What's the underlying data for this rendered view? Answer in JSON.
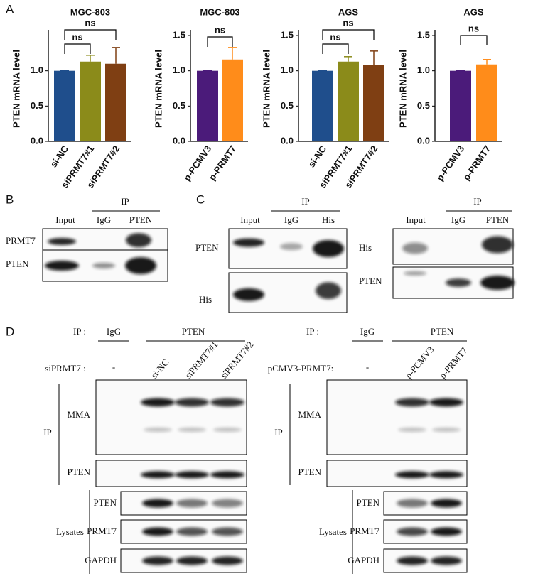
{
  "panel_labels": [
    "A",
    "B",
    "C",
    "D"
  ],
  "chart_data": [
    {
      "type": "bar",
      "title": "MGC-803",
      "y_label": "PTEN mRNA level",
      "categories": [
        "si-NC",
        "siPRMT7#1",
        "siPRMT7#2"
      ],
      "values": [
        1.0,
        1.13,
        1.1
      ],
      "errors": [
        0,
        0.09,
        0.23
      ],
      "colors": [
        "#1f4e8c",
        "#8b8b1a",
        "#7f3f13"
      ],
      "ylim": [
        0,
        1.5
      ],
      "yticks": [
        {
          "value": 0,
          "label": "0.0"
        },
        0.5,
        {
          "value": 1,
          "label": "1.0"
        }
      ],
      "annotations": [
        "ns",
        "ns"
      ]
    },
    {
      "type": "bar",
      "title": "MGC-803",
      "y_label": "PTEN mRNA level",
      "categories": [
        "p-PCMV3",
        "p-PRMT7"
      ],
      "values": [
        1.0,
        1.16
      ],
      "errors": [
        0,
        0.17
      ],
      "colors": [
        "#4b1b7a",
        "#ff8c1a"
      ],
      "ylim": [
        0,
        1.5
      ],
      "yticks": [
        {
          "value": 0,
          "label": "0.0"
        },
        0.5,
        {
          "value": 1,
          "label": "1.0"
        },
        1.5
      ],
      "annotations": [
        "ns"
      ]
    },
    {
      "type": "bar",
      "title": "AGS",
      "y_label": "PTEN mRNA level",
      "categories": [
        "si-NC",
        "siPRMT7#1",
        "siPRMT7#2"
      ],
      "values": [
        1.0,
        1.13,
        1.08
      ],
      "errors": [
        0,
        0.07,
        0.2
      ],
      "colors": [
        "#1f4e8c",
        "#8b8b1a",
        "#7f3f13"
      ],
      "ylim": [
        0,
        1.5
      ],
      "yticks": [
        {
          "value": 0,
          "label": "0.0"
        },
        0.5,
        {
          "value": 1,
          "label": "1.0"
        },
        1.5
      ],
      "annotations": [
        "ns",
        "ns"
      ]
    },
    {
      "type": "bar",
      "title": "AGS",
      "y_label": "PTEN mRNA level",
      "categories": [
        "p-PCMV3",
        "p-PRMT7"
      ],
      "values": [
        1.0,
        1.09
      ],
      "errors": [
        0,
        0.07
      ],
      "colors": [
        "#4b1b7a",
        "#ff8c1a"
      ],
      "ylim": [
        0,
        1.5
      ],
      "yticks": [
        {
          "value": 0,
          "label": "0.0"
        },
        0.5,
        {
          "value": 1,
          "label": "1.0"
        },
        1.5
      ],
      "annotations": [
        "ns"
      ]
    }
  ],
  "blot_b": {
    "header": [
      "Input",
      "IgG",
      "PTEN"
    ],
    "group": "IP",
    "rows": [
      "PRMT7",
      "PTEN"
    ]
  },
  "blot_c_left": {
    "header": [
      "Input",
      "IgG",
      "His"
    ],
    "group": "IP",
    "rows": [
      "PTEN",
      "His"
    ]
  },
  "blot_c_right": {
    "header": [
      "Input",
      "IgG",
      "PTEN"
    ],
    "group": "IP",
    "rows": [
      "His",
      "PTEN"
    ]
  },
  "blot_d_left": {
    "ip_label": "IP :",
    "ip_groups": [
      "IgG",
      "PTEN"
    ],
    "treatment_label": "siPRMT7 :",
    "lanes": [
      "-",
      "si-NC",
      "siPRMT7#1",
      "siPRMT7#2"
    ],
    "ip_group": "IP",
    "ip_rows": [
      "MMA",
      "PTEN"
    ],
    "lysate_group": "Lysates",
    "lysate_rows": [
      "PTEN",
      "PRMT7",
      "GAPDH"
    ]
  },
  "blot_d_right": {
    "ip_label": "IP :",
    "ip_groups": [
      "IgG",
      "PTEN"
    ],
    "treatment_label": "pCMV3-PRMT7:",
    "lanes": [
      "-",
      "p-PCMV3",
      "p-PRMT7"
    ],
    "ip_group": "IP",
    "ip_rows": [
      "MMA",
      "PTEN"
    ],
    "lysate_group": "Lysates",
    "lysate_rows": [
      "PTEN",
      "PRMT7",
      "GAPDH"
    ]
  }
}
